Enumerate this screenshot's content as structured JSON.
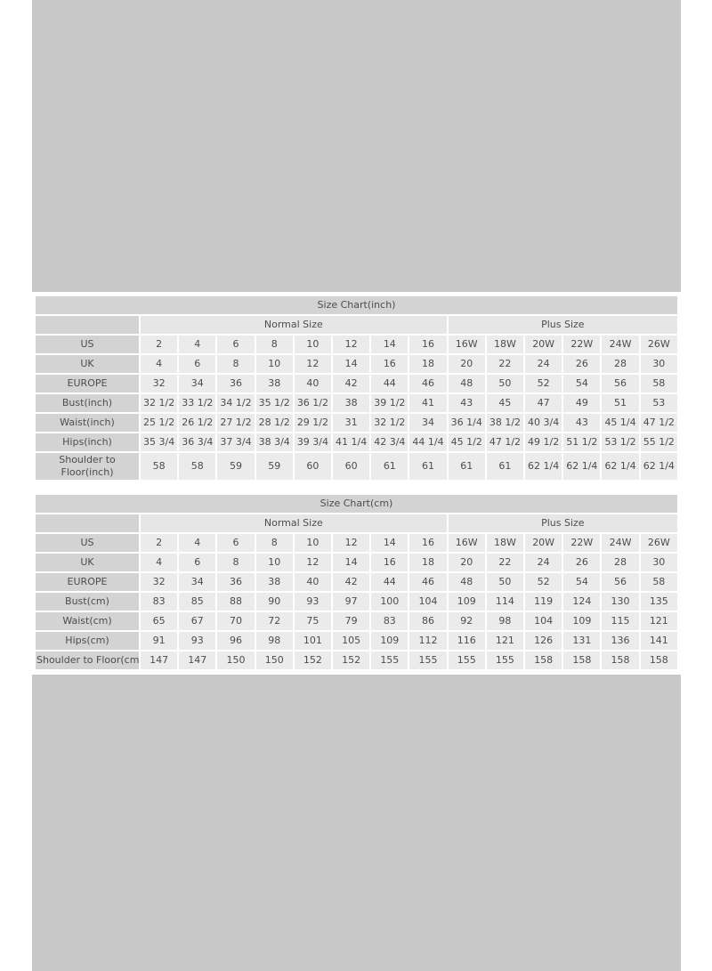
{
  "colors": {
    "page_background": "#ffffff",
    "canvas_background": "#c8c8c8",
    "title_bar": "#d3d3d3",
    "row_label_cell": "#d3d3d3",
    "group_header_cell": "#e6e6e6",
    "data_cell": "#ebebeb",
    "text": "#4d4d4d",
    "cell_gutter": "#ffffff"
  },
  "chart_data": [
    {
      "type": "table",
      "title": "Size Chart(inch)",
      "column_groups": [
        {
          "label": "",
          "span": 1
        },
        {
          "label": "Normal Size",
          "span": 8
        },
        {
          "label": "Plus Size",
          "span": 6
        }
      ],
      "rows": [
        {
          "label": "US",
          "values": [
            "2",
            "4",
            "6",
            "8",
            "10",
            "12",
            "14",
            "16",
            "16W",
            "18W",
            "20W",
            "22W",
            "24W",
            "26W"
          ]
        },
        {
          "label": "UK",
          "values": [
            "4",
            "6",
            "8",
            "10",
            "12",
            "14",
            "16",
            "18",
            "20",
            "22",
            "24",
            "26",
            "28",
            "30"
          ]
        },
        {
          "label": "EUROPE",
          "values": [
            "32",
            "34",
            "36",
            "38",
            "40",
            "42",
            "44",
            "46",
            "48",
            "50",
            "52",
            "54",
            "56",
            "58"
          ]
        },
        {
          "label": "Bust(inch)",
          "values": [
            "32 1/2",
            "33 1/2",
            "34 1/2",
            "35 1/2",
            "36 1/2",
            "38",
            "39 1/2",
            "41",
            "43",
            "45",
            "47",
            "49",
            "51",
            "53"
          ]
        },
        {
          "label": "Waist(inch)",
          "values": [
            "25 1/2",
            "26 1/2",
            "27 1/2",
            "28 1/2",
            "29 1/2",
            "31",
            "32 1/2",
            "34",
            "36 1/4",
            "38 1/2",
            "40 3/4",
            "43",
            "45 1/4",
            "47 1/2"
          ]
        },
        {
          "label": "Hips(inch)",
          "values": [
            "35 3/4",
            "36 3/4",
            "37 3/4",
            "38 3/4",
            "39 3/4",
            "41 1/4",
            "42 3/4",
            "44 1/4",
            "45 1/2",
            "47 1/2",
            "49 1/2",
            "51 1/2",
            "53 1/2",
            "55 1/2"
          ]
        },
        {
          "label": "Shoulder to\nFloor(inch)",
          "values": [
            "58",
            "58",
            "59",
            "59",
            "60",
            "60",
            "61",
            "61",
            "61",
            "61",
            "62 1/4",
            "62 1/4",
            "62 1/4",
            "62 1/4"
          ]
        }
      ]
    },
    {
      "type": "table",
      "title": "Size Chart(cm)",
      "column_groups": [
        {
          "label": "",
          "span": 1
        },
        {
          "label": "Normal Size",
          "span": 8
        },
        {
          "label": "Plus Size",
          "span": 6
        }
      ],
      "rows": [
        {
          "label": "US",
          "values": [
            "2",
            "4",
            "6",
            "8",
            "10",
            "12",
            "14",
            "16",
            "16W",
            "18W",
            "20W",
            "22W",
            "24W",
            "26W"
          ]
        },
        {
          "label": "UK",
          "values": [
            "4",
            "6",
            "8",
            "10",
            "12",
            "14",
            "16",
            "18",
            "20",
            "22",
            "24",
            "26",
            "28",
            "30"
          ]
        },
        {
          "label": "EUROPE",
          "values": [
            "32",
            "34",
            "36",
            "38",
            "40",
            "42",
            "44",
            "46",
            "48",
            "50",
            "52",
            "54",
            "56",
            "58"
          ]
        },
        {
          "label": "Bust(cm)",
          "values": [
            "83",
            "85",
            "88",
            "90",
            "93",
            "97",
            "100",
            "104",
            "109",
            "114",
            "119",
            "124",
            "130",
            "135"
          ]
        },
        {
          "label": "Waist(cm)",
          "values": [
            "65",
            "67",
            "70",
            "72",
            "75",
            "79",
            "83",
            "86",
            "92",
            "98",
            "104",
            "109",
            "115",
            "121"
          ]
        },
        {
          "label": "Hips(cm)",
          "values": [
            "91",
            "93",
            "96",
            "98",
            "101",
            "105",
            "109",
            "112",
            "116",
            "121",
            "126",
            "131",
            "136",
            "141"
          ]
        },
        {
          "label": "Shoulder to Floor(cm)",
          "values": [
            "147",
            "147",
            "150",
            "150",
            "152",
            "152",
            "155",
            "155",
            "155",
            "155",
            "158",
            "158",
            "158",
            "158"
          ]
        }
      ]
    }
  ]
}
